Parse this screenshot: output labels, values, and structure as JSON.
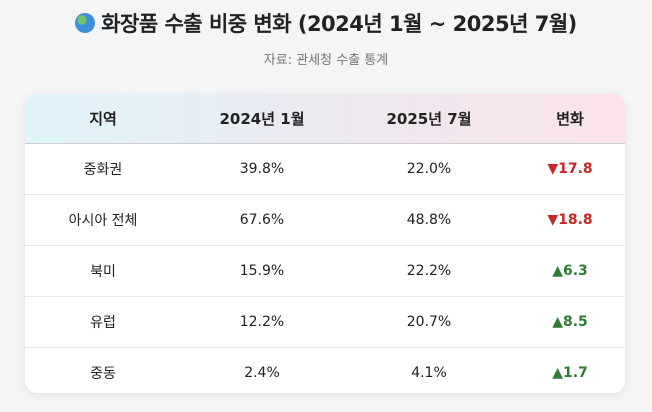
{
  "title": "화장품 수출 비중 변화 (2024년 1월 ~ 2025년 7월)",
  "title_icon": "globe-icon",
  "subtitle": "자료: 관세청 수출 통계",
  "colors": {
    "down": "#c62828",
    "up": "#2e7d32"
  },
  "headers": [
    "지역",
    "2024년 1월",
    "2025년 7월",
    "변화"
  ],
  "rows": [
    {
      "region": "중화권",
      "jan2024": "39.8%",
      "jul2025": "22.0%",
      "arrow": "▼",
      "change": "17.8",
      "dir": "down"
    },
    {
      "region": "아시아 전체",
      "jan2024": "67.6%",
      "jul2025": "48.8%",
      "arrow": "▼",
      "change": "18.8",
      "dir": "down"
    },
    {
      "region": "북미",
      "jan2024": "15.9%",
      "jul2025": "22.2%",
      "arrow": "▲",
      "change": "6.3",
      "dir": "up"
    },
    {
      "region": "유럽",
      "jan2024": "12.2%",
      "jul2025": "20.7%",
      "arrow": "▲",
      "change": "8.5",
      "dir": "up"
    },
    {
      "region": "중동",
      "jan2024": "2.4%",
      "jul2025": "4.1%",
      "arrow": "▲",
      "change": "1.7",
      "dir": "up"
    }
  ]
}
